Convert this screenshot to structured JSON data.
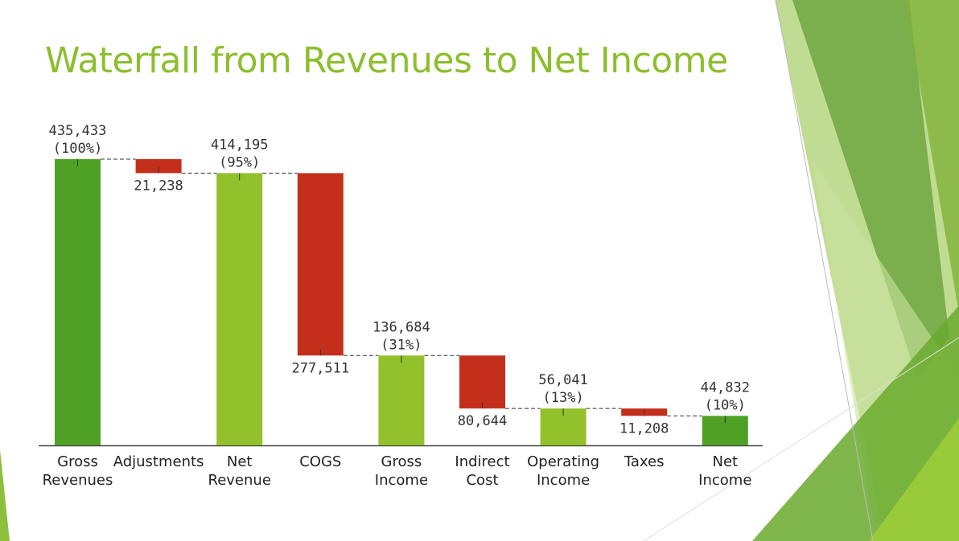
{
  "slide": {
    "title": "Waterfall from Revenues to Net Income"
  },
  "colors": {
    "total_dark": "#4fa126",
    "total_light": "#92c12b",
    "decrease": "#c42f1b",
    "connector": "#333333",
    "axis": "#444444",
    "title": "#8cbf2e"
  },
  "chart_data": {
    "type": "waterfall",
    "title": "",
    "xlabel": "",
    "ylabel": "",
    "ylim": [
      0,
      435433
    ],
    "grid": false,
    "categories": [
      [
        "Gross",
        "Revenues"
      ],
      [
        "Adjustments"
      ],
      [
        "Net",
        "Revenue"
      ],
      [
        "COGS"
      ],
      [
        "Gross",
        "Income"
      ],
      [
        "Indirect",
        "Cost"
      ],
      [
        "Operating",
        "Income"
      ],
      [
        "Taxes"
      ],
      [
        "Net",
        "Income"
      ]
    ],
    "bars": [
      {
        "kind": "total",
        "value": 435433,
        "label": "435,433",
        "pct": "(100%)",
        "color": "total_dark"
      },
      {
        "kind": "decrease",
        "value": 21238,
        "label": "21,238"
      },
      {
        "kind": "total",
        "value": 414195,
        "label": "414,195",
        "pct": "(95%)",
        "color": "total_light"
      },
      {
        "kind": "decrease",
        "value": 277511,
        "label": "277,511"
      },
      {
        "kind": "total",
        "value": 136684,
        "label": "136,684",
        "pct": "(31%)",
        "color": "total_light"
      },
      {
        "kind": "decrease",
        "value": 80644,
        "label": "80,644"
      },
      {
        "kind": "total",
        "value": 56041,
        "label": "56,041",
        "pct": "(13%)",
        "color": "total_light"
      },
      {
        "kind": "decrease",
        "value": 11208,
        "label": "11,208"
      },
      {
        "kind": "total",
        "value": 44832,
        "label": "44,832",
        "pct": "(10%)",
        "color": "total_dark"
      }
    ]
  }
}
